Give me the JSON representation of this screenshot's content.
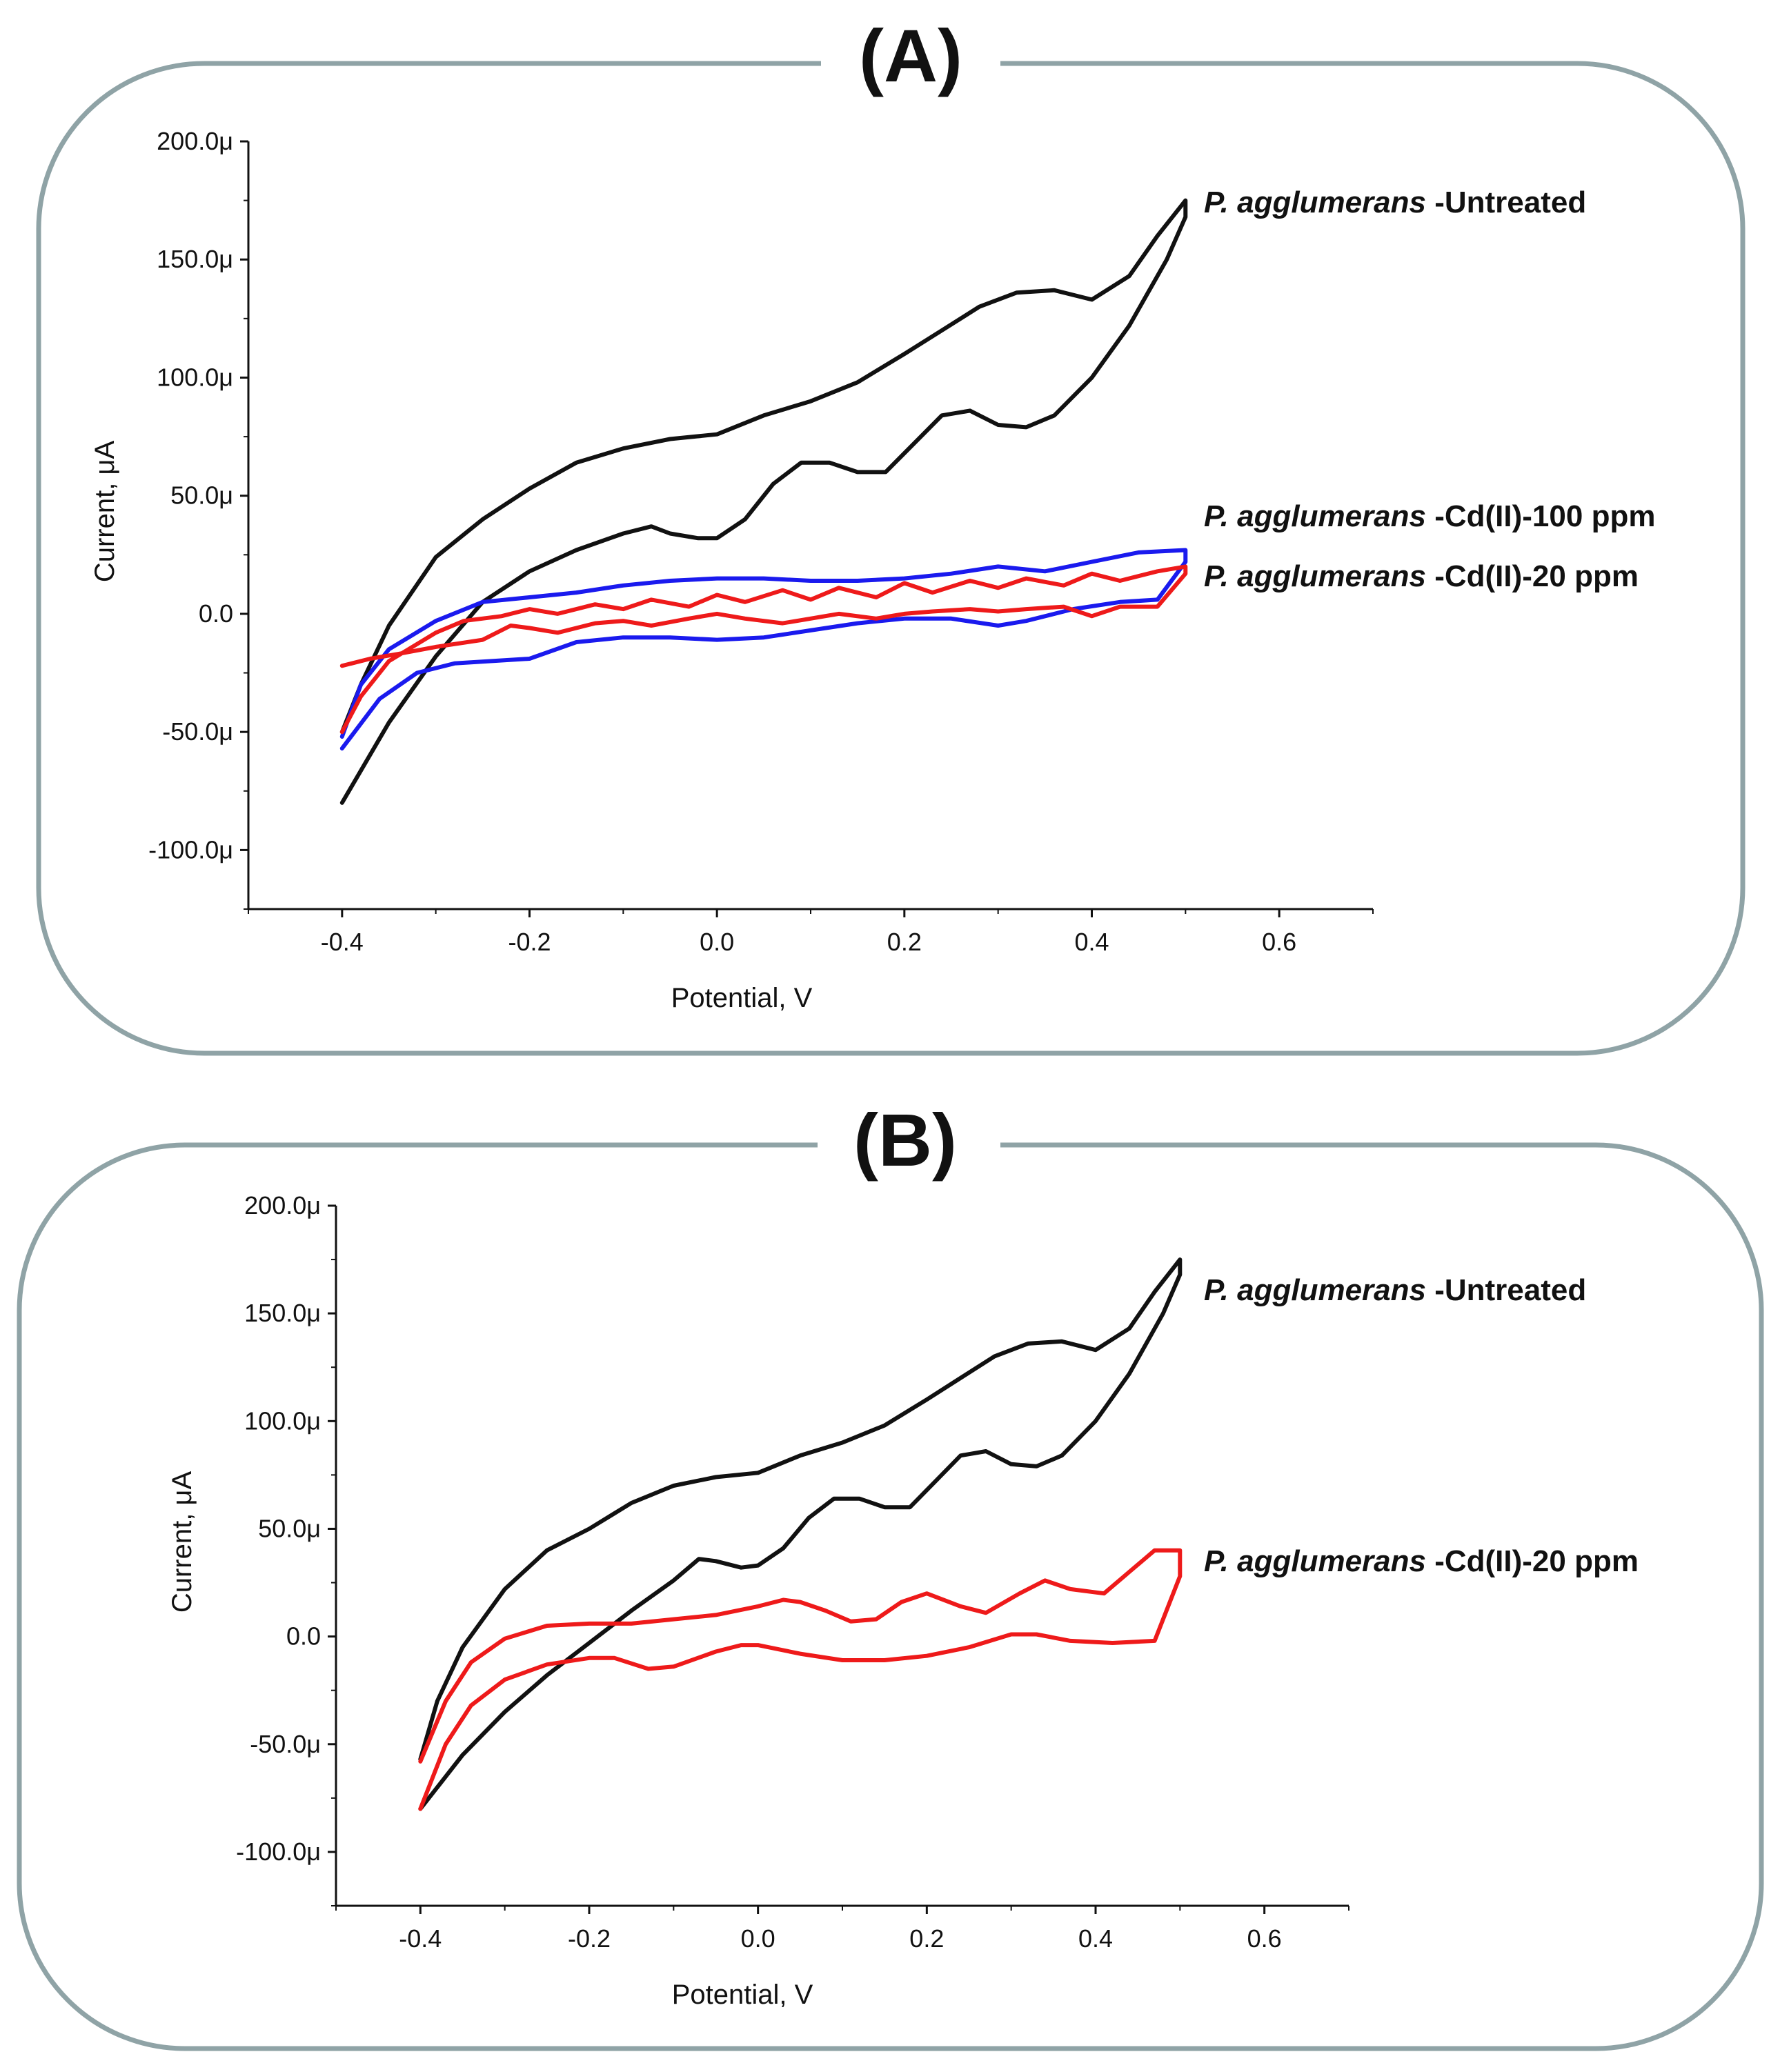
{
  "chart_data": [
    {
      "type": "line",
      "title": "(A)",
      "xlabel": "Potential, V",
      "ylabel": "Current, μA",
      "xlim": [
        -0.5,
        0.7
      ],
      "ylim": [
        -125,
        200
      ],
      "xticks": [
        -0.4,
        -0.2,
        0.0,
        0.2,
        0.4,
        0.6
      ],
      "xtick_labels": [
        "-0.4",
        "-0.2",
        "0.0",
        "0.2",
        "0.4",
        "0.6"
      ],
      "yticks": [
        200,
        150,
        100,
        50,
        0,
        -50,
        -100
      ],
      "ytick_labels": [
        "200.0μ",
        "150.0μ",
        "100.0μ",
        "50.0μ",
        "0.0",
        "-50.0μ",
        "-100.0μ"
      ],
      "grid": false,
      "series": [
        {
          "name": "Untreated",
          "label_italic": "P. agglumerans",
          "label_rest": " -Untreated",
          "color": "#111111",
          "points": [
            [
              -0.4,
              -80
            ],
            [
              -0.35,
              -46
            ],
            [
              -0.3,
              -18
            ],
            [
              -0.25,
              5
            ],
            [
              -0.2,
              18
            ],
            [
              -0.15,
              27
            ],
            [
              -0.1,
              34
            ],
            [
              -0.07,
              37
            ],
            [
              -0.05,
              34
            ],
            [
              -0.02,
              32
            ],
            [
              0.0,
              32
            ],
            [
              0.03,
              40
            ],
            [
              0.06,
              55
            ],
            [
              0.09,
              64
            ],
            [
              0.12,
              64
            ],
            [
              0.15,
              60
            ],
            [
              0.18,
              60
            ],
            [
              0.21,
              72
            ],
            [
              0.24,
              84
            ],
            [
              0.27,
              86
            ],
            [
              0.3,
              80
            ],
            [
              0.33,
              79
            ],
            [
              0.36,
              84
            ],
            [
              0.4,
              100
            ],
            [
              0.44,
              122
            ],
            [
              0.48,
              150
            ],
            [
              0.5,
              168
            ],
            [
              0.5,
              175
            ],
            [
              0.47,
              160
            ],
            [
              0.44,
              143
            ],
            [
              0.4,
              133
            ],
            [
              0.36,
              137
            ],
            [
              0.32,
              136
            ],
            [
              0.28,
              130
            ],
            [
              0.24,
              120
            ],
            [
              0.2,
              110
            ],
            [
              0.15,
              98
            ],
            [
              0.1,
              90
            ],
            [
              0.05,
              84
            ],
            [
              0.0,
              76
            ],
            [
              -0.05,
              74
            ],
            [
              -0.1,
              70
            ],
            [
              -0.15,
              64
            ],
            [
              -0.2,
              53
            ],
            [
              -0.25,
              40
            ],
            [
              -0.3,
              24
            ],
            [
              -0.35,
              -5
            ],
            [
              -0.38,
              -30
            ],
            [
              -0.4,
              -50
            ]
          ]
        },
        {
          "name": "Cd(II)-100 ppm",
          "label_italic": "P. agglumerans",
          "label_rest": " -Cd(II)-100 ppm",
          "color": "#1a1aee",
          "points": [
            [
              -0.4,
              -57
            ],
            [
              -0.36,
              -36
            ],
            [
              -0.32,
              -25
            ],
            [
              -0.28,
              -21
            ],
            [
              -0.2,
              -19
            ],
            [
              -0.15,
              -12
            ],
            [
              -0.1,
              -10
            ],
            [
              -0.05,
              -10
            ],
            [
              0.0,
              -11
            ],
            [
              0.05,
              -10
            ],
            [
              0.1,
              -7
            ],
            [
              0.15,
              -4
            ],
            [
              0.2,
              -2
            ],
            [
              0.25,
              -2
            ],
            [
              0.3,
              -5
            ],
            [
              0.33,
              -3
            ],
            [
              0.38,
              2
            ],
            [
              0.43,
              5
            ],
            [
              0.47,
              6
            ],
            [
              0.5,
              22
            ],
            [
              0.5,
              27
            ],
            [
              0.45,
              26
            ],
            [
              0.4,
              22
            ],
            [
              0.35,
              18
            ],
            [
              0.3,
              20
            ],
            [
              0.25,
              17
            ],
            [
              0.2,
              15
            ],
            [
              0.15,
              14
            ],
            [
              0.1,
              14
            ],
            [
              0.05,
              15
            ],
            [
              0.0,
              15
            ],
            [
              -0.05,
              14
            ],
            [
              -0.1,
              12
            ],
            [
              -0.15,
              9
            ],
            [
              -0.2,
              7
            ],
            [
              -0.25,
              5
            ],
            [
              -0.3,
              -3
            ],
            [
              -0.35,
              -15
            ],
            [
              -0.38,
              -30
            ],
            [
              -0.4,
              -52
            ]
          ]
        },
        {
          "name": "Cd(II)-20 ppm",
          "label_italic": "P. agglumerans",
          "label_rest": " -Cd(II)-20 ppm",
          "color": "#ee1a1a",
          "points": [
            [
              -0.4,
              -22
            ],
            [
              -0.37,
              -19
            ],
            [
              -0.34,
              -17
            ],
            [
              -0.3,
              -14
            ],
            [
              -0.25,
              -11
            ],
            [
              -0.22,
              -5
            ],
            [
              -0.2,
              -6
            ],
            [
              -0.17,
              -8
            ],
            [
              -0.13,
              -4
            ],
            [
              -0.1,
              -3
            ],
            [
              -0.07,
              -5
            ],
            [
              -0.03,
              -2
            ],
            [
              0.0,
              0
            ],
            [
              0.03,
              -2
            ],
            [
              0.07,
              -4
            ],
            [
              0.1,
              -2
            ],
            [
              0.13,
              0
            ],
            [
              0.17,
              -2
            ],
            [
              0.2,
              0
            ],
            [
              0.23,
              1
            ],
            [
              0.27,
              2
            ],
            [
              0.3,
              1
            ],
            [
              0.33,
              2
            ],
            [
              0.37,
              3
            ],
            [
              0.4,
              -1
            ],
            [
              0.43,
              3
            ],
            [
              0.47,
              3
            ],
            [
              0.5,
              17
            ],
            [
              0.5,
              20
            ],
            [
              0.47,
              18
            ],
            [
              0.43,
              14
            ],
            [
              0.4,
              17
            ],
            [
              0.37,
              12
            ],
            [
              0.33,
              15
            ],
            [
              0.3,
              11
            ],
            [
              0.27,
              14
            ],
            [
              0.23,
              9
            ],
            [
              0.2,
              13
            ],
            [
              0.17,
              7
            ],
            [
              0.13,
              11
            ],
            [
              0.1,
              6
            ],
            [
              0.07,
              10
            ],
            [
              0.03,
              5
            ],
            [
              0.0,
              8
            ],
            [
              -0.03,
              3
            ],
            [
              -0.07,
              6
            ],
            [
              -0.1,
              2
            ],
            [
              -0.13,
              4
            ],
            [
              -0.17,
              0
            ],
            [
              -0.2,
              2
            ],
            [
              -0.23,
              -1
            ],
            [
              -0.27,
              -3
            ],
            [
              -0.3,
              -8
            ],
            [
              -0.35,
              -20
            ],
            [
              -0.38,
              -35
            ],
            [
              -0.4,
              -50
            ]
          ]
        }
      ]
    },
    {
      "type": "line",
      "title": "(B)",
      "xlabel": "Potential, V",
      "ylabel": "Current, μA",
      "xlim": [
        -0.5,
        0.7
      ],
      "ylim": [
        -125,
        200
      ],
      "xticks": [
        -0.4,
        -0.2,
        0.0,
        0.2,
        0.4,
        0.6
      ],
      "xtick_labels": [
        "-0.4",
        "-0.2",
        "0.0",
        "0.2",
        "0.4",
        "0.6"
      ],
      "yticks": [
        200,
        150,
        100,
        50,
        0,
        -50,
        -100
      ],
      "ytick_labels": [
        "200.0μ",
        "150.0μ",
        "100.0μ",
        "50.0μ",
        "0.0",
        "-50.0μ",
        "-100.0μ"
      ],
      "grid": false,
      "series": [
        {
          "name": "Untreated",
          "label_italic": "P. agglumerans",
          "label_rest": " -Untreated",
          "color": "#111111",
          "points": [
            [
              -0.4,
              -80
            ],
            [
              -0.35,
              -55
            ],
            [
              -0.3,
              -35
            ],
            [
              -0.25,
              -18
            ],
            [
              -0.2,
              -3
            ],
            [
              -0.15,
              12
            ],
            [
              -0.1,
              26
            ],
            [
              -0.07,
              36
            ],
            [
              -0.05,
              35
            ],
            [
              -0.02,
              32
            ],
            [
              0.0,
              33
            ],
            [
              0.03,
              41
            ],
            [
              0.06,
              55
            ],
            [
              0.09,
              64
            ],
            [
              0.12,
              64
            ],
            [
              0.15,
              60
            ],
            [
              0.18,
              60
            ],
            [
              0.21,
              72
            ],
            [
              0.24,
              84
            ],
            [
              0.27,
              86
            ],
            [
              0.3,
              80
            ],
            [
              0.33,
              79
            ],
            [
              0.36,
              84
            ],
            [
              0.4,
              100
            ],
            [
              0.44,
              122
            ],
            [
              0.48,
              150
            ],
            [
              0.5,
              168
            ],
            [
              0.5,
              175
            ],
            [
              0.47,
              160
            ],
            [
              0.44,
              143
            ],
            [
              0.4,
              133
            ],
            [
              0.36,
              137
            ],
            [
              0.32,
              136
            ],
            [
              0.28,
              130
            ],
            [
              0.24,
              120
            ],
            [
              0.2,
              110
            ],
            [
              0.15,
              98
            ],
            [
              0.1,
              90
            ],
            [
              0.05,
              84
            ],
            [
              0.0,
              76
            ],
            [
              -0.05,
              74
            ],
            [
              -0.1,
              70
            ],
            [
              -0.15,
              62
            ],
            [
              -0.2,
              50
            ],
            [
              -0.25,
              40
            ],
            [
              -0.3,
              22
            ],
            [
              -0.35,
              -5
            ],
            [
              -0.38,
              -30
            ],
            [
              -0.4,
              -57
            ]
          ]
        },
        {
          "name": "Cd(II)-20 ppm",
          "label_italic": "P. agglumerans",
          "label_rest": " -Cd(II)-20 ppm",
          "color": "#ee1a1a",
          "points": [
            [
              -0.4,
              -80
            ],
            [
              -0.37,
              -50
            ],
            [
              -0.34,
              -32
            ],
            [
              -0.3,
              -20
            ],
            [
              -0.25,
              -13
            ],
            [
              -0.2,
              -10
            ],
            [
              -0.17,
              -10
            ],
            [
              -0.13,
              -15
            ],
            [
              -0.1,
              -14
            ],
            [
              -0.05,
              -7
            ],
            [
              -0.02,
              -4
            ],
            [
              0.0,
              -4
            ],
            [
              0.05,
              -8
            ],
            [
              0.1,
              -11
            ],
            [
              0.15,
              -11
            ],
            [
              0.2,
              -9
            ],
            [
              0.25,
              -5
            ],
            [
              0.3,
              1
            ],
            [
              0.33,
              1
            ],
            [
              0.37,
              -2
            ],
            [
              0.42,
              -3
            ],
            [
              0.47,
              -2
            ],
            [
              0.5,
              28
            ],
            [
              0.5,
              40
            ],
            [
              0.47,
              40
            ],
            [
              0.44,
              30
            ],
            [
              0.41,
              20
            ],
            [
              0.37,
              22
            ],
            [
              0.34,
              26
            ],
            [
              0.31,
              20
            ],
            [
              0.27,
              11
            ],
            [
              0.24,
              14
            ],
            [
              0.2,
              20
            ],
            [
              0.17,
              16
            ],
            [
              0.14,
              8
            ],
            [
              0.11,
              7
            ],
            [
              0.08,
              12
            ],
            [
              0.05,
              16
            ],
            [
              0.03,
              17
            ],
            [
              0.0,
              14
            ],
            [
              -0.05,
              10
            ],
            [
              -0.1,
              8
            ],
            [
              -0.15,
              6
            ],
            [
              -0.2,
              6
            ],
            [
              -0.25,
              5
            ],
            [
              -0.3,
              -1
            ],
            [
              -0.34,
              -12
            ],
            [
              -0.37,
              -30
            ],
            [
              -0.4,
              -58
            ]
          ]
        }
      ]
    }
  ]
}
